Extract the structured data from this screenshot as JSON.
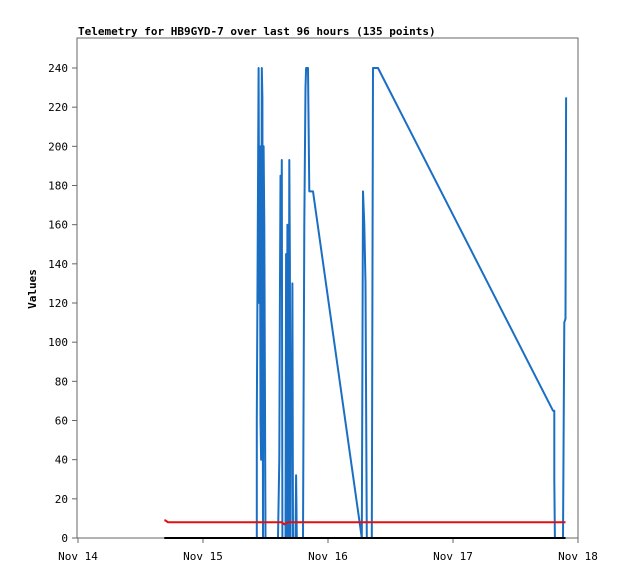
{
  "chart_data": {
    "type": "line",
    "title": "Telemetry for HB9GYD-7 over last 96 hours (135 points)",
    "xlabel": "",
    "ylabel": "Values",
    "xlim": [
      0,
      4
    ],
    "ylim": [
      0,
      255
    ],
    "x_ticks": [
      {
        "value": 0,
        "label": "Nov 14"
      },
      {
        "value": 1,
        "label": "Nov 15"
      },
      {
        "value": 2,
        "label": "Nov 16"
      },
      {
        "value": 3,
        "label": "Nov 17"
      },
      {
        "value": 4,
        "label": "Nov 18"
      }
    ],
    "y_ticks": [
      0,
      20,
      40,
      60,
      80,
      100,
      120,
      140,
      160,
      180,
      200,
      220,
      240
    ],
    "grid": false,
    "legend": "none",
    "series": [
      {
        "color": "#1a6fc4",
        "points": [
          [
            1.43,
            0
          ],
          [
            1.43,
            60
          ],
          [
            1.44,
            180
          ],
          [
            1.445,
            240
          ],
          [
            1.45,
            120
          ],
          [
            1.455,
            200
          ],
          [
            1.46,
            60
          ],
          [
            1.465,
            40
          ],
          [
            1.47,
            240
          ],
          [
            1.475,
            225
          ],
          [
            1.48,
            0
          ],
          [
            1.485,
            200
          ],
          [
            1.49,
            160
          ],
          [
            1.5,
            0
          ],
          [
            1.52,
            0
          ],
          [
            1.6,
            0
          ],
          [
            1.61,
            40
          ],
          [
            1.615,
            120
          ],
          [
            1.62,
            185
          ],
          [
            1.625,
            130
          ],
          [
            1.63,
            193
          ],
          [
            1.635,
            0
          ],
          [
            1.64,
            0
          ],
          [
            1.66,
            0
          ],
          [
            1.665,
            145
          ],
          [
            1.67,
            0
          ],
          [
            1.675,
            160
          ],
          [
            1.68,
            100
          ],
          [
            1.685,
            0
          ],
          [
            1.69,
            193
          ],
          [
            1.695,
            140
          ],
          [
            1.7,
            0
          ],
          [
            1.705,
            90
          ],
          [
            1.71,
            57
          ],
          [
            1.715,
            130
          ],
          [
            1.72,
            0
          ],
          [
            1.73,
            0
          ],
          [
            1.74,
            0
          ],
          [
            1.745,
            32
          ],
          [
            1.75,
            0
          ],
          [
            1.77,
            0
          ],
          [
            1.79,
            0
          ],
          [
            1.8,
            0
          ],
          [
            1.81,
            160
          ],
          [
            1.82,
            230
          ],
          [
            1.825,
            240
          ],
          [
            1.83,
            240
          ],
          [
            1.84,
            240
          ],
          [
            1.85,
            177
          ],
          [
            1.87,
            177
          ],
          [
            1.88,
            177
          ],
          [
            2.27,
            0
          ],
          [
            2.28,
            177
          ],
          [
            2.29,
            160
          ],
          [
            2.3,
            130
          ],
          [
            2.31,
            0
          ],
          [
            2.32,
            0
          ],
          [
            2.33,
            0
          ],
          [
            2.34,
            0
          ],
          [
            2.35,
            0
          ],
          [
            2.36,
            240
          ],
          [
            2.4,
            240
          ],
          [
            3.8,
            65
          ],
          [
            3.81,
            65
          ],
          [
            3.81,
            30
          ],
          [
            3.815,
            0
          ],
          [
            3.83,
            0
          ],
          [
            3.88,
            0
          ],
          [
            3.89,
            110
          ],
          [
            3.9,
            112
          ],
          [
            3.905,
            225
          ]
        ]
      },
      {
        "color": "#e01010",
        "points": [
          [
            0.69,
            9
          ],
          [
            0.7,
            9
          ],
          [
            0.72,
            8
          ],
          [
            1.5,
            8
          ],
          [
            1.63,
            8
          ],
          [
            1.65,
            7
          ],
          [
            1.68,
            8
          ],
          [
            2.3,
            8
          ],
          [
            3.0,
            8
          ],
          [
            3.9,
            8
          ]
        ]
      },
      {
        "color": "#000000",
        "points": [
          [
            0.69,
            0
          ],
          [
            3.9,
            0
          ]
        ]
      }
    ]
  }
}
